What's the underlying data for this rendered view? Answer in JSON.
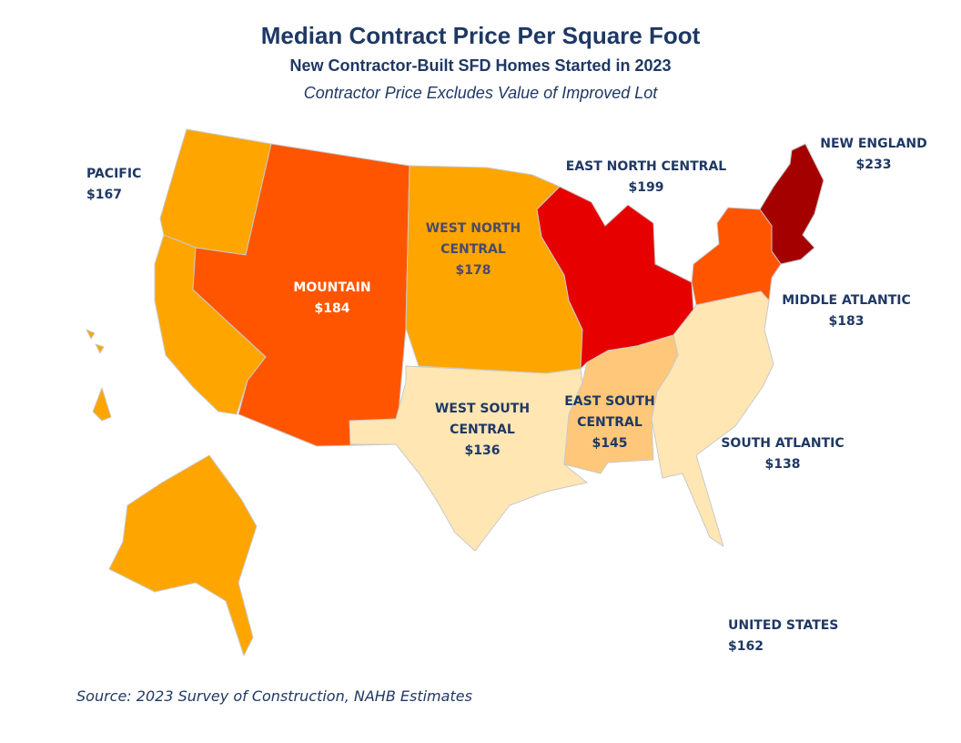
{
  "title": "Median Contract Price Per Square Foot",
  "subtitle": "New Contractor-Built SFD Homes Started in 2023",
  "note": "Contractor Price Excludes Value of Improved Lot",
  "source": "Source: 2023 Survey of Construction, NAHB Estimates",
  "regions": {
    "pacific": {
      "name": "PACIFIC",
      "value": "$167",
      "color": "#ffa500"
    },
    "mountain": {
      "name": "MOUNTAIN",
      "value": "$184",
      "color": "#ff5500"
    },
    "west_north_central": {
      "name_line1": "WEST NORTH",
      "name_line2": "CENTRAL",
      "value": "$178",
      "color": "#ffa500"
    },
    "east_north_central": {
      "name": "EAST NORTH CENTRAL",
      "value": "$199",
      "color": "#e60000"
    },
    "new_england": {
      "name": "NEW ENGLAND",
      "value": "$233",
      "color": "#a50000"
    },
    "middle_atlantic": {
      "name": "MIDDLE ATLANTIC",
      "value": "$183",
      "color": "#ff5500"
    },
    "south_atlantic": {
      "name": "SOUTH ATLANTIC",
      "value": "$138",
      "color": "#ffe6b3"
    },
    "east_south_central": {
      "name_line1": "EAST SOUTH",
      "name_line2": "CENTRAL",
      "value": "$145",
      "color": "#ffc77a"
    },
    "west_south_central": {
      "name_line1": "WEST SOUTH",
      "name_line2": "CENTRAL",
      "value": "$136",
      "color": "#ffe6b3"
    },
    "united_states": {
      "name": "UNITED STATES",
      "value": "$162"
    }
  }
}
